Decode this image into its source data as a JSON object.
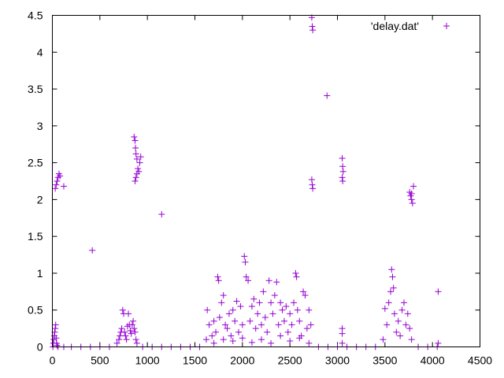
{
  "chart_data": {
    "type": "scatter",
    "title": "",
    "xlabel": "",
    "ylabel": "",
    "xlim": [
      0,
      4500
    ],
    "ylim": [
      0,
      4.5
    ],
    "xticks": [
      "0",
      "500",
      "1000",
      "1500",
      "2000",
      "2500",
      "3000",
      "3500",
      "4000",
      "4500"
    ],
    "yticks": [
      "0",
      "0.5",
      "1",
      "1.5",
      "2",
      "2.5",
      "3",
      "3.5",
      "4",
      "4.5"
    ],
    "grid": false,
    "legend_position": "top-right",
    "marker": "+",
    "series": [
      {
        "name": "'delay.dat'",
        "color": "#9400d3",
        "points": [
          [
            5,
            0.0
          ],
          [
            10,
            0.05
          ],
          [
            15,
            0.1
          ],
          [
            20,
            0.15
          ],
          [
            25,
            0.2
          ],
          [
            30,
            0.25
          ],
          [
            35,
            0.3
          ],
          [
            40,
            0.12
          ],
          [
            45,
            0.05
          ],
          [
            50,
            0.02
          ],
          [
            30,
            2.15
          ],
          [
            40,
            2.2
          ],
          [
            50,
            2.25
          ],
          [
            60,
            2.3
          ],
          [
            70,
            2.35
          ],
          [
            80,
            2.32
          ],
          [
            120,
            2.18
          ],
          [
            60,
            0.0
          ],
          [
            120,
            0.0
          ],
          [
            200,
            0.0
          ],
          [
            300,
            0.0
          ],
          [
            400,
            0.0
          ],
          [
            500,
            0.0
          ],
          [
            600,
            0.0
          ],
          [
            420,
            1.31
          ],
          [
            680,
            0.05
          ],
          [
            700,
            0.1
          ],
          [
            710,
            0.15
          ],
          [
            720,
            0.2
          ],
          [
            730,
            0.25
          ],
          [
            740,
            0.5
          ],
          [
            750,
            0.45
          ],
          [
            760,
            0.2
          ],
          [
            770,
            0.15
          ],
          [
            780,
            0.1
          ],
          [
            790,
            0.28
          ],
          [
            800,
            0.45
          ],
          [
            810,
            0.3
          ],
          [
            820,
            0.22
          ],
          [
            830,
            0.18
          ],
          [
            840,
            0.3
          ],
          [
            850,
            0.35
          ],
          [
            860,
            0.25
          ],
          [
            870,
            0.2
          ],
          [
            880,
            0.1
          ],
          [
            890,
            0.05
          ],
          [
            860,
            2.85
          ],
          [
            870,
            2.8
          ],
          [
            875,
            2.7
          ],
          [
            880,
            2.62
          ],
          [
            890,
            2.55
          ],
          [
            900,
            2.42
          ],
          [
            910,
            2.38
          ],
          [
            880,
            2.3
          ],
          [
            870,
            2.25
          ],
          [
            920,
            2.5
          ],
          [
            930,
            2.58
          ],
          [
            890,
            2.35
          ],
          [
            950,
            0.0
          ],
          [
            1050,
            0.0
          ],
          [
            1150,
            0.0
          ],
          [
            1250,
            0.0
          ],
          [
            1350,
            0.0
          ],
          [
            1450,
            0.0
          ],
          [
            1550,
            0.0
          ],
          [
            1150,
            1.8
          ],
          [
            1620,
            0.1
          ],
          [
            1630,
            0.5
          ],
          [
            1650,
            0.3
          ],
          [
            1680,
            0.15
          ],
          [
            1700,
            0.35
          ],
          [
            1720,
            0.2
          ],
          [
            1740,
            0.95
          ],
          [
            1750,
            0.9
          ],
          [
            1760,
            0.4
          ],
          [
            1780,
            0.6
          ],
          [
            1800,
            0.7
          ],
          [
            1820,
            0.3
          ],
          [
            1840,
            0.25
          ],
          [
            1860,
            0.45
          ],
          [
            1880,
            0.15
          ],
          [
            1900,
            0.5
          ],
          [
            1920,
            0.35
          ],
          [
            1940,
            0.62
          ],
          [
            1960,
            0.2
          ],
          [
            1980,
            0.55
          ],
          [
            2000,
            0.3
          ],
          [
            2020,
            1.23
          ],
          [
            2030,
            1.15
          ],
          [
            2040,
            0.95
          ],
          [
            2060,
            0.9
          ],
          [
            2080,
            0.35
          ],
          [
            2100,
            0.55
          ],
          [
            2120,
            0.65
          ],
          [
            2140,
            0.25
          ],
          [
            2160,
            0.45
          ],
          [
            2180,
            0.6
          ],
          [
            2200,
            0.3
          ],
          [
            2220,
            0.75
          ],
          [
            2240,
            0.4
          ],
          [
            2260,
            0.2
          ],
          [
            2280,
            0.9
          ],
          [
            2300,
            0.6
          ],
          [
            2320,
            0.45
          ],
          [
            2340,
            0.7
          ],
          [
            2360,
            0.88
          ],
          [
            2380,
            0.3
          ],
          [
            2400,
            0.6
          ],
          [
            2420,
            0.5
          ],
          [
            2440,
            0.35
          ],
          [
            2460,
            0.55
          ],
          [
            2480,
            0.2
          ],
          [
            2500,
            0.45
          ],
          [
            2520,
            0.3
          ],
          [
            2540,
            0.6
          ],
          [
            2560,
            1.0
          ],
          [
            2570,
            0.95
          ],
          [
            2580,
            0.5
          ],
          [
            2600,
            0.35
          ],
          [
            2620,
            0.15
          ],
          [
            2640,
            0.75
          ],
          [
            2660,
            0.7
          ],
          [
            2680,
            0.25
          ],
          [
            2700,
            0.5
          ],
          [
            2720,
            0.3
          ],
          [
            1700,
            0.05
          ],
          [
            1800,
            0.1
          ],
          [
            1900,
            0.08
          ],
          [
            2000,
            0.12
          ],
          [
            2100,
            0.06
          ],
          [
            2200,
            0.1
          ],
          [
            2300,
            0.05
          ],
          [
            2400,
            0.15
          ],
          [
            2500,
            0.08
          ],
          [
            2600,
            0.12
          ],
          [
            2700,
            0.05
          ],
          [
            2730,
            4.47
          ],
          [
            2735,
            4.35
          ],
          [
            2740,
            4.3
          ],
          [
            2730,
            2.27
          ],
          [
            2735,
            2.2
          ],
          [
            2740,
            2.15
          ],
          [
            2890,
            3.41
          ],
          [
            2800,
            0.0
          ],
          [
            2900,
            0.0
          ],
          [
            3000,
            0.0
          ],
          [
            3100,
            0.0
          ],
          [
            3200,
            0.0
          ],
          [
            3300,
            0.0
          ],
          [
            3400,
            0.0
          ],
          [
            3050,
            2.56
          ],
          [
            3055,
            2.45
          ],
          [
            3060,
            2.38
          ],
          [
            3050,
            2.3
          ],
          [
            3055,
            2.25
          ],
          [
            3050,
            0.25
          ],
          [
            3050,
            0.18
          ],
          [
            3050,
            0.05
          ],
          [
            3480,
            0.1
          ],
          [
            3500,
            0.52
          ],
          [
            3520,
            0.3
          ],
          [
            3540,
            0.6
          ],
          [
            3560,
            0.75
          ],
          [
            3570,
            1.05
          ],
          [
            3580,
            0.95
          ],
          [
            3590,
            0.8
          ],
          [
            3600,
            0.45
          ],
          [
            3620,
            0.2
          ],
          [
            3640,
            0.35
          ],
          [
            3660,
            0.15
          ],
          [
            3680,
            0.5
          ],
          [
            3700,
            0.6
          ],
          [
            3720,
            0.3
          ],
          [
            3740,
            0.45
          ],
          [
            3760,
            0.25
          ],
          [
            3780,
            0.1
          ],
          [
            3760,
            2.1
          ],
          [
            3770,
            2.05
          ],
          [
            3780,
            2.0
          ],
          [
            3790,
            1.95
          ],
          [
            3800,
            2.18
          ],
          [
            3780,
            2.08
          ],
          [
            3850,
            0.0
          ],
          [
            3950,
            0.0
          ],
          [
            4050,
            0.0
          ],
          [
            4060,
            0.05
          ],
          [
            4060,
            0.75
          ]
        ]
      }
    ]
  }
}
